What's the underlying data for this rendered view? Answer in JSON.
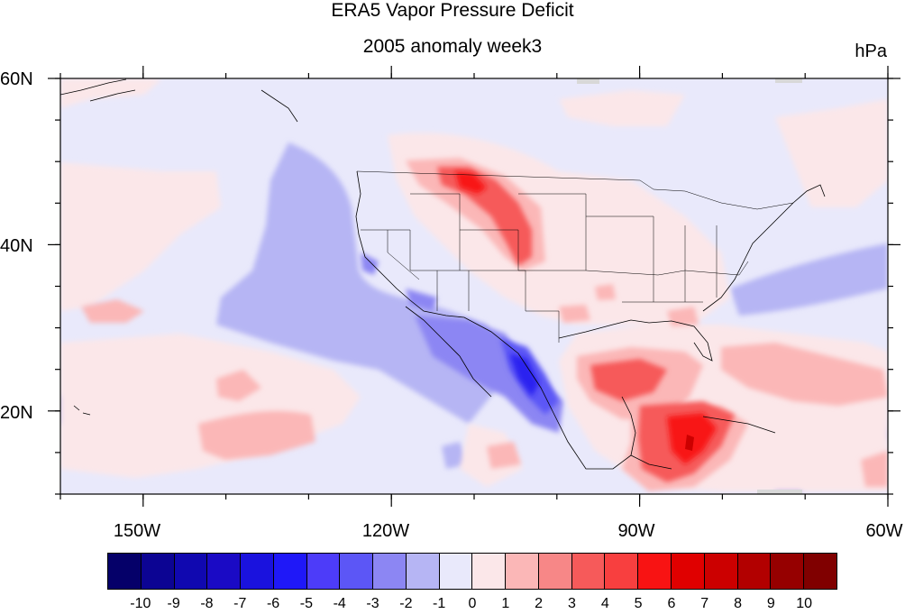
{
  "figure": {
    "title": "ERA5 Vapor Pressure Deficit",
    "subtitle": "2005 anomaly week3",
    "units": "hPa"
  },
  "map": {
    "projection": "cylindrical equidistant",
    "lon_range": [
      -160,
      -60
    ],
    "lat_range": [
      10,
      60
    ],
    "lat_labels": [
      "60N",
      "40N",
      "20N"
    ],
    "lon_labels": [
      "150W",
      "120W",
      "90W",
      "60W"
    ],
    "background_value": "-1 to 0 (light lavender)",
    "features": [
      {
        "name": "pacific-northwest-plains-dry-anomaly",
        "level": 5,
        "center": [
          -105,
          47
        ]
      },
      {
        "name": "gulf-caribbean-dry-anomaly",
        "level": 6,
        "center": [
          -83,
          18
        ]
      },
      {
        "name": "mexico-wet-anomaly",
        "level": -5,
        "center": [
          -102,
          25
        ]
      },
      {
        "name": "eastern-pacific-wet-band",
        "level": -3,
        "center": [
          -127,
          38
        ]
      },
      {
        "name": "northeast-atlantic-wet-band",
        "level": -2,
        "center": [
          -68,
          35
        ]
      },
      {
        "name": "subtropical-pacific-dry-band",
        "level": 2,
        "center": [
          -140,
          20
        ]
      }
    ]
  },
  "colorbar": {
    "labels": [
      "-10",
      "-9",
      "-8",
      "-7",
      "-6",
      "-5",
      "-4",
      "-3",
      "-2",
      "-1",
      "0",
      "1",
      "2",
      "3",
      "4",
      "5",
      "6",
      "7",
      "8",
      "9",
      "10"
    ],
    "colors": [
      "#050069",
      "#0c0493",
      "#1008b0",
      "#1a0ac5",
      "#1a12de",
      "#1f18f8",
      "#4d3cf9",
      "#5c56f6",
      "#8c86f3",
      "#b6b5f4",
      "#e9e9fb",
      "#fbe7e9",
      "#fbb7b7",
      "#f78787",
      "#f65a5a",
      "#f83f3f",
      "#f81313",
      "#e00000",
      "#cc0000",
      "#b20000",
      "#960000",
      "#800000"
    ]
  }
}
